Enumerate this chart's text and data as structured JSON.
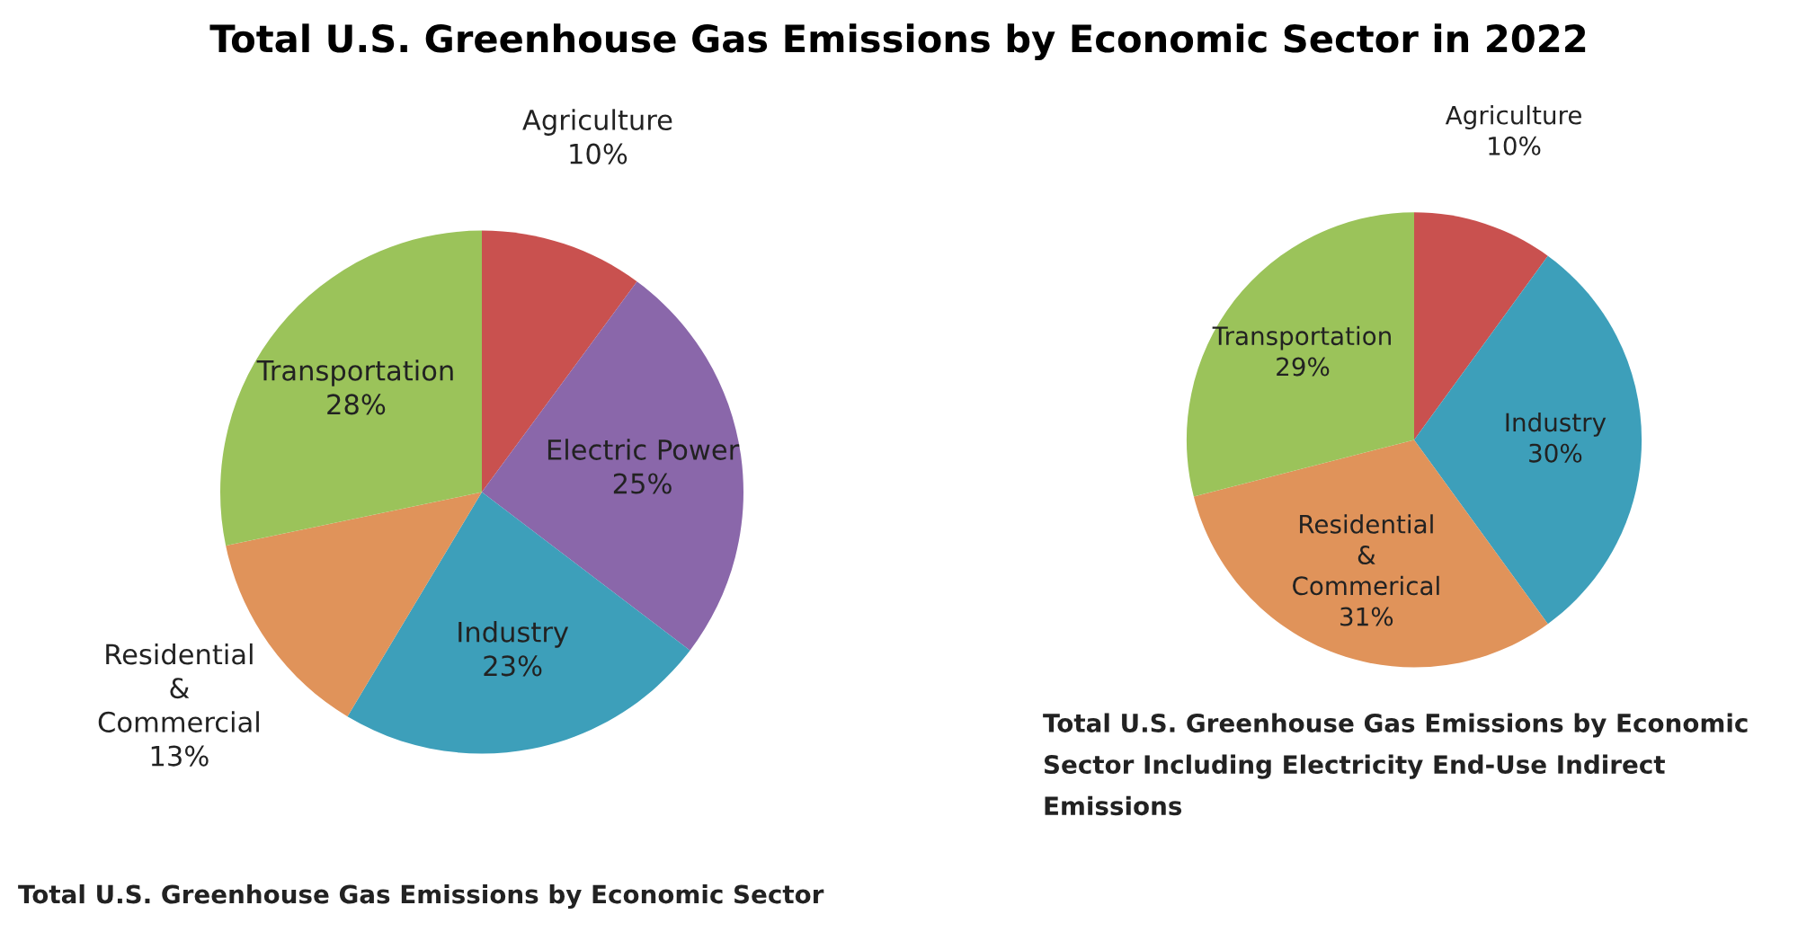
{
  "chart_data": [
    {
      "type": "pie",
      "title": "Total U.S. Greenhouse Gas Emissions by Economic Sector in 2022",
      "categories": [
        "Agriculture",
        "Electric Power",
        "Industry",
        "Residential & Commercial",
        "Transportation"
      ],
      "values": [
        10,
        25,
        23,
        13,
        28
      ],
      "value_labels": [
        "10%",
        "25%",
        "23%",
        "13%",
        "28%"
      ],
      "colors": [
        "#c9514f",
        "#8a67aa",
        "#3d9fba",
        "#e0935a",
        "#9bc35a"
      ],
      "annotations": [
        "Total U.S. Greenhouse Gas Emissions by Economic Sector"
      ]
    },
    {
      "type": "pie",
      "categories": [
        "Agriculture",
        "Industry",
        "Residential & Commerical",
        "Transportation"
      ],
      "values": [
        10,
        30,
        31,
        29
      ],
      "value_labels": [
        "10%",
        "30%",
        "31%",
        "29%"
      ],
      "colors": [
        "#c9514f",
        "#3d9fba",
        "#e0935a",
        "#9bc35a"
      ],
      "annotations": [
        "Total U.S. Greenhouse Gas Emissions by Economic Sector Including Electricity End-Use Indirect Emissions"
      ]
    }
  ]
}
